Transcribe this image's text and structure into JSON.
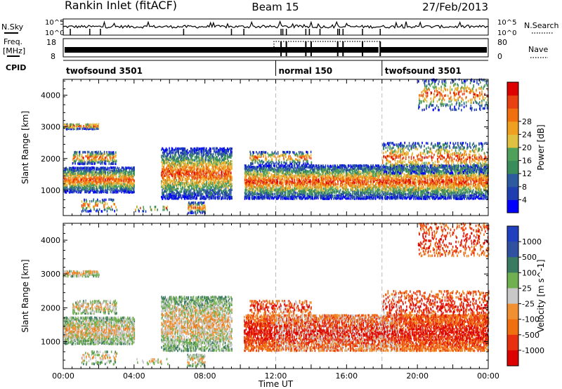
{
  "header": {
    "station": "Rankin Inlet (fitACF)",
    "beam": "Beam 15",
    "date": "27/Feb/2013"
  },
  "labels": {
    "nsky": "N.Sky",
    "nsearch": "N.Search",
    "freq_a": "Freq.",
    "freq_b": "[MHz]",
    "nave": "Nave",
    "cpid": "CPID",
    "nsky_top": "10^5",
    "nsky_bot": "10^0",
    "freq_top": "18",
    "freq_bot": "8",
    "nave_top": "80",
    "nave_bot": "0"
  },
  "cpid_segments": [
    {
      "label": "twofsound 3501",
      "start_h": 0
    },
    {
      "label": "normal 150",
      "start_h": 12
    },
    {
      "label": "twofsound 3501",
      "start_h": 18
    }
  ],
  "colors": {
    "power": [
      "#0000ff",
      "#1f3fb0",
      "#2e5aa0",
      "#3a8c5a",
      "#4fa05a",
      "#e0c040",
      "#f0a020",
      "#f07010",
      "#e84010",
      "#dc0000"
    ],
    "velocity": [
      "#2040c0",
      "#3050a0",
      "#3a7a60",
      "#70b050",
      "#c8c8c8",
      "#f09030",
      "#f07010",
      "#e83010",
      "#dc0000"
    ]
  },
  "chart_data": [
    {
      "type": "heatmap",
      "title": "Power",
      "xlabel": "Time UT",
      "ylabel": "Slant Range [km]",
      "xlim": [
        0,
        24
      ],
      "ylim": [
        200,
        4500
      ],
      "xticks": [
        "00:00",
        "04:00",
        "08:00",
        "12:00",
        "16:00",
        "20:00",
        "00:00"
      ],
      "yticks": [
        1000,
        2000,
        3000,
        4000
      ],
      "colorbar": {
        "label": "Power [dB]",
        "ticks": [
          4,
          8,
          12,
          16,
          20,
          24,
          28
        ]
      }
    },
    {
      "type": "heatmap",
      "title": "Velocity",
      "xlabel": "Time UT",
      "ylabel": "Slant Range [km]",
      "xlim": [
        0,
        24
      ],
      "ylim": [
        200,
        4500
      ],
      "xticks": [
        "00:00",
        "04:00",
        "08:00",
        "12:00",
        "16:00",
        "20:00",
        "00:00"
      ],
      "yticks": [
        1000,
        2000,
        3000,
        4000
      ],
      "colorbar": {
        "label": "Velocity [m s^-1]",
        "ticks": [
          1000,
          500,
          100,
          25,
          -25,
          -100,
          -500,
          -1000
        ]
      }
    }
  ]
}
